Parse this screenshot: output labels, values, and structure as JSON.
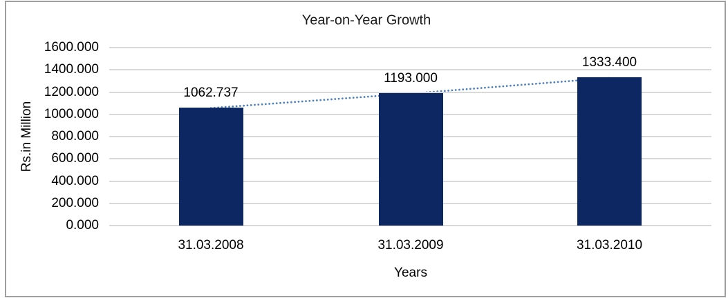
{
  "frame": {
    "border_color": "#9e9e9e",
    "background": "#ffffff"
  },
  "chart_data": {
    "type": "bar",
    "title": "Year-on-Year Growth",
    "xlabel": "Years",
    "ylabel": "Rs.in Million",
    "categories": [
      "31.03.2008",
      "31.03.2009",
      "31.03.2010"
    ],
    "values": [
      1062.737,
      1193.0,
      1333.4
    ],
    "value_labels": [
      "1062.737",
      "1193.000",
      "1333.400"
    ],
    "ylim": [
      0,
      1600
    ],
    "ystep": 200,
    "ytick_labels": [
      "0.000",
      "200.000",
      "400.000",
      "600.000",
      "800.000",
      "1000.000",
      "1200.000",
      "1400.000",
      "1600.000"
    ],
    "grid": true,
    "legend_position": "none",
    "trendline": {
      "style": "dotted",
      "color": "#4f81bd"
    },
    "colors": {
      "bar": "#0d2763",
      "gridline": "#d9d9d9",
      "text": "#000000"
    }
  }
}
